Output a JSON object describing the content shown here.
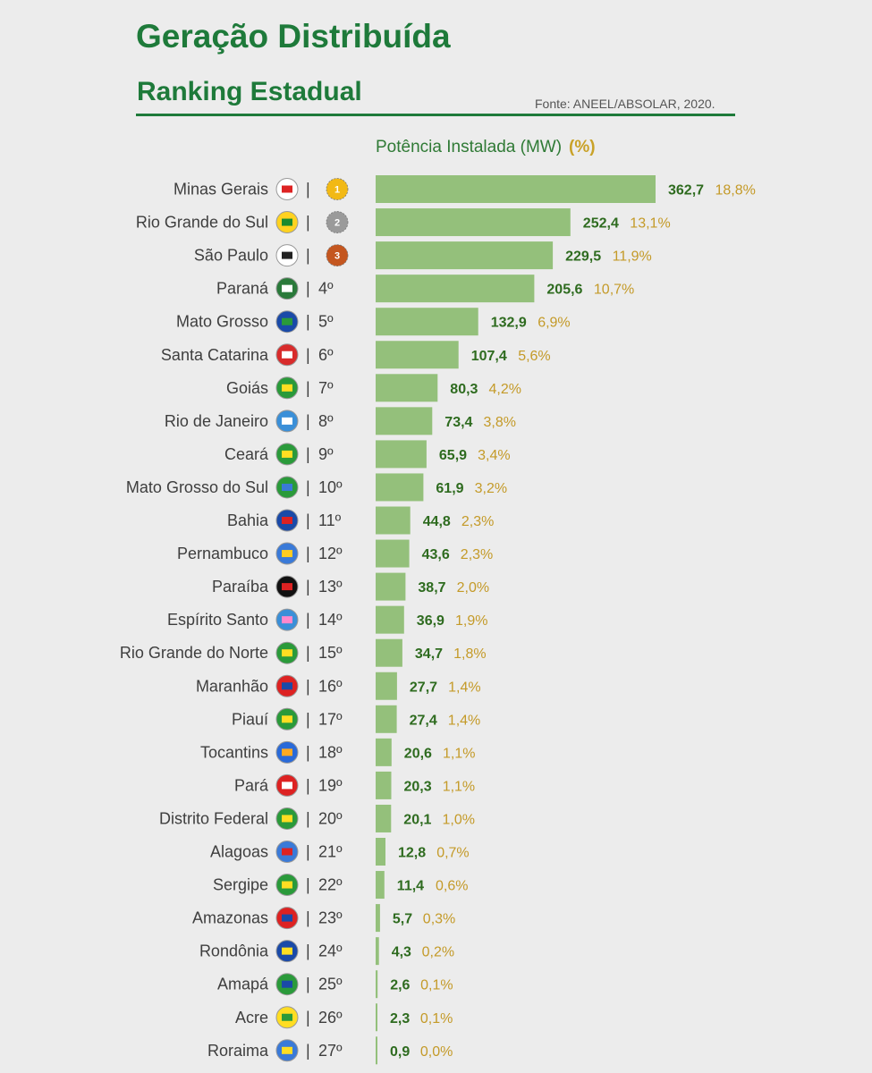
{
  "header": {
    "title": "Geração Distribuída",
    "subtitle": "Ranking Estadual",
    "source": "Fonte: ANEEL/ABSOLAR, 2020.",
    "column_label": "Potência Instalada (MW)",
    "percent_label": "(%)"
  },
  "colors": {
    "title_green": "#1e7a3a",
    "bar_green": "#94c07b",
    "value_green": "#2e6b1f",
    "percent_gold": "#c49a28",
    "background": "#ececec"
  },
  "chart_data": {
    "type": "bar",
    "orientation": "horizontal",
    "title": "Geração Distribuída",
    "subtitle": "Ranking Estadual",
    "xlabel": "Potência Instalada (MW)",
    "categories": [
      "Minas Gerais",
      "Rio Grande do Sul",
      "São Paulo",
      "Paraná",
      "Mato Grosso",
      "Santa Catarina",
      "Goiás",
      "Rio de Janeiro",
      "Ceará",
      "Mato Grosso do Sul",
      "Bahia",
      "Pernambuco",
      "Paraíba",
      "Espírito Santo",
      "Rio Grande do Norte",
      "Maranhão",
      "Piauí",
      "Tocantins",
      "Pará",
      "Distrito Federal",
      "Alagoas",
      "Sergipe",
      "Amazonas",
      "Rondônia",
      "Amapá",
      "Acre",
      "Roraima"
    ],
    "ranks": [
      "1",
      "2",
      "3",
      "4º",
      "5º",
      "6º",
      "7º",
      "8º",
      "9º",
      "10º",
      "11º",
      "12º",
      "13º",
      "14º",
      "15º",
      "16º",
      "17º",
      "18º",
      "19º",
      "20º",
      "21º",
      "22º",
      "23º",
      "24º",
      "25º",
      "26º",
      "27º"
    ],
    "values": [
      362.7,
      252.4,
      229.5,
      205.6,
      132.9,
      107.4,
      80.3,
      73.4,
      65.9,
      61.9,
      44.8,
      43.6,
      38.7,
      36.9,
      34.7,
      27.7,
      27.4,
      20.6,
      20.3,
      20.1,
      12.8,
      11.4,
      5.7,
      4.3,
      2.6,
      2.3,
      0.9
    ],
    "value_labels": [
      "362,7",
      "252,4",
      "229,5",
      "205,6",
      "132,9",
      "107,4",
      "80,3",
      "73,4",
      "65,9",
      "61,9",
      "44,8",
      "43,6",
      "38,7",
      "36,9",
      "34,7",
      "27,7",
      "27,4",
      "20,6",
      "20,3",
      "20,1",
      "12,8",
      "11,4",
      "5,7",
      "4,3",
      "2,6",
      "2,3",
      "0,9"
    ],
    "percent_labels": [
      "18,8%",
      "13,1%",
      "11,9%",
      "10,7%",
      "6,9%",
      "5,6%",
      "4,2%",
      "3,8%",
      "3,4%",
      "3,2%",
      "2,3%",
      "2,3%",
      "2,0%",
      "1,9%",
      "1,8%",
      "1,4%",
      "1,4%",
      "1,1%",
      "1,1%",
      "1,0%",
      "0,7%",
      "0,6%",
      "0,3%",
      "0,2%",
      "0,1%",
      "0,1%",
      "0,0%"
    ],
    "medals": [
      "gold-medal-icon",
      "silver-medal-icon",
      "bronze-medal-icon"
    ],
    "flag_icons": [
      "mg-flag-icon",
      "rs-flag-icon",
      "sp-flag-icon",
      "pr-flag-icon",
      "mt-flag-icon",
      "sc-flag-icon",
      "go-flag-icon",
      "rj-flag-icon",
      "ce-flag-icon",
      "ms-flag-icon",
      "ba-flag-icon",
      "pe-flag-icon",
      "pb-flag-icon",
      "es-flag-icon",
      "rn-flag-icon",
      "ma-flag-icon",
      "pi-flag-icon",
      "to-flag-icon",
      "pa-flag-icon",
      "df-flag-icon",
      "al-flag-icon",
      "se-flag-icon",
      "am-flag-icon",
      "ro-flag-icon",
      "ap-flag-icon",
      "ac-flag-icon",
      "rr-flag-icon"
    ],
    "xlim": [
      0,
      362.7
    ],
    "grid": false,
    "legend": "none"
  }
}
